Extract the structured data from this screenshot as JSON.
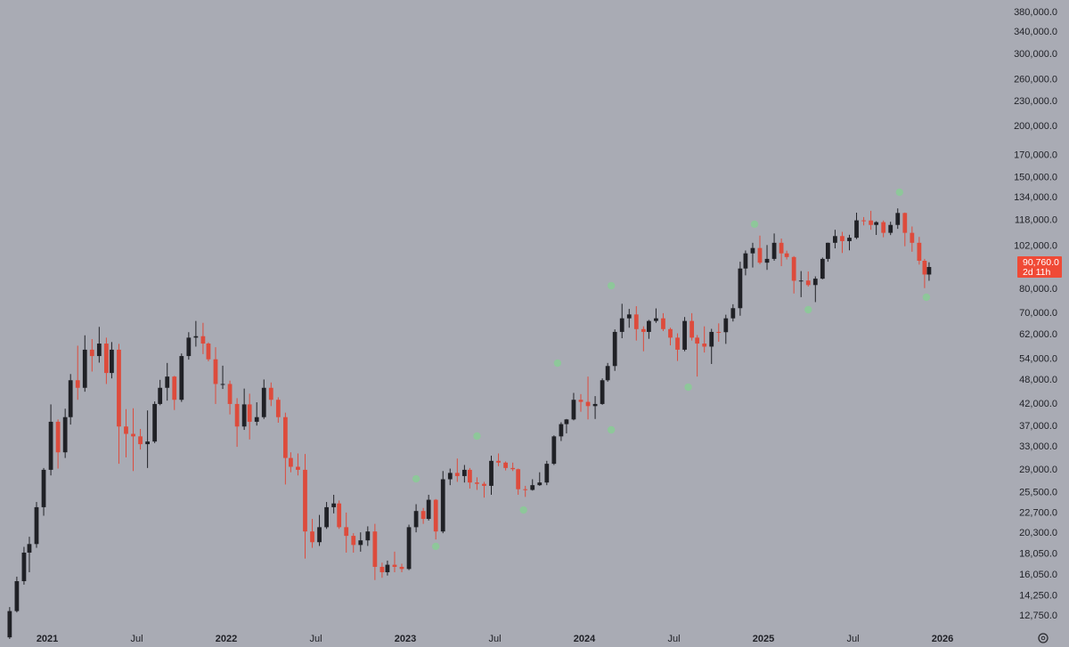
{
  "chart_data": {
    "type": "candlestick",
    "log_scale": true,
    "grid": false,
    "background": "#a9abb4",
    "up_color": "#202126",
    "down_color": "#dd4b3c",
    "x": [
      2020.79,
      2020.83,
      2020.87,
      2020.9,
      2020.94,
      2020.98,
      2021.02,
      2021.06,
      2021.1,
      2021.13,
      2021.17,
      2021.21,
      2021.25,
      2021.29,
      2021.33,
      2021.36,
      2021.4,
      2021.44,
      2021.48,
      2021.52,
      2021.56,
      2021.6,
      2021.63,
      2021.67,
      2021.71,
      2021.75,
      2021.79,
      2021.83,
      2021.87,
      2021.9,
      2021.94,
      2021.98,
      2022.02,
      2022.06,
      2022.1,
      2022.13,
      2022.17,
      2022.21,
      2022.25,
      2022.29,
      2022.33,
      2022.36,
      2022.4,
      2022.44,
      2022.48,
      2022.52,
      2022.56,
      2022.6,
      2022.63,
      2022.67,
      2022.71,
      2022.75,
      2022.79,
      2022.83,
      2022.87,
      2022.9,
      2022.94,
      2022.98,
      2023.02,
      2023.06,
      2023.1,
      2023.13,
      2023.17,
      2023.21,
      2023.25,
      2023.29,
      2023.33,
      2023.36,
      2023.4,
      2023.44,
      2023.48,
      2023.52,
      2023.56,
      2023.6,
      2023.63,
      2023.67,
      2023.71,
      2023.75,
      2023.79,
      2023.83,
      2023.87,
      2023.9,
      2023.94,
      2023.98,
      2024.02,
      2024.06,
      2024.1,
      2024.13,
      2024.17,
      2024.21,
      2024.25,
      2024.29,
      2024.33,
      2024.36,
      2024.4,
      2024.44,
      2024.48,
      2024.52,
      2024.56,
      2024.6,
      2024.63,
      2024.67,
      2024.71,
      2024.75,
      2024.79,
      2024.83,
      2024.87,
      2024.9,
      2024.94,
      2024.98,
      2025.02,
      2025.06,
      2025.1,
      2025.13,
      2025.17,
      2025.21,
      2025.25,
      2025.29,
      2025.33,
      2025.36,
      2025.4,
      2025.44,
      2025.48,
      2025.52,
      2025.56,
      2025.6,
      2025.63,
      2025.67,
      2025.71,
      2025.75,
      2025.79,
      2025.83,
      2025.87,
      2025.9,
      2025.925
    ],
    "open": [
      11300,
      13100,
      15500,
      18200,
      19100,
      23500,
      29000,
      38000,
      32000,
      39000,
      48000,
      46000,
      57000,
      55000,
      59000,
      50000,
      57000,
      37000,
      35500,
      35000,
      33500,
      34000,
      42000,
      46000,
      49000,
      43000,
      55000,
      61000,
      61500,
      59000,
      54000,
      47000,
      47000,
      42000,
      37000,
      41900,
      38000,
      39000,
      46000,
      43000,
      39000,
      31000,
      29500,
      29000,
      20500,
      19300,
      21000,
      23500,
      24000,
      21000,
      20000,
      19000,
      19500,
      20500,
      16800,
      16300,
      17000,
      16800,
      16600,
      21000,
      23000,
      22000,
      24500,
      20500,
      27500,
      28500,
      28000,
      29000,
      27000,
      26800,
      26500,
      30500,
      30200,
      29300,
      29100,
      26000,
      25900,
      26600,
      27000,
      30000,
      35000,
      37500,
      38500,
      43000,
      42500,
      41500,
      42000,
      48000,
      52000,
      63000,
      68000,
      69500,
      64000,
      63000,
      67000,
      68000,
      64000,
      61000,
      57000,
      67000,
      61000,
      59000,
      58000,
      63000,
      62900,
      68000,
      72000,
      90000,
      98000,
      101000,
      93000,
      95000,
      104000,
      98000,
      96000,
      84000,
      84100,
      82000,
      85000,
      95000,
      104000,
      108000,
      105000,
      107000,
      118000,
      117900,
      115000,
      116800,
      110000,
      115000,
      123000,
      110000,
      104000,
      94000,
      87000
    ],
    "high": [
      13400,
      15900,
      18800,
      19900,
      24200,
      29300,
      41900,
      38500,
      40900,
      49700,
      58300,
      61800,
      60500,
      64800,
      61000,
      59500,
      58900,
      40800,
      41000,
      36500,
      40500,
      42600,
      48100,
      52900,
      49200,
      55800,
      62900,
      67000,
      66300,
      59400,
      57800,
      52100,
      47900,
      43400,
      45800,
      44500,
      42400,
      48200,
      47400,
      43600,
      40000,
      32000,
      31800,
      31700,
      22000,
      22500,
      24200,
      25200,
      24400,
      22800,
      20300,
      20400,
      21100,
      21400,
      17200,
      17400,
      18300,
      17100,
      21300,
      23900,
      23400,
      25200,
      24600,
      28800,
      29200,
      30900,
      29800,
      29300,
      27800,
      27100,
      31400,
      31800,
      30400,
      30200,
      29200,
      26500,
      27500,
      28600,
      30500,
      35200,
      37900,
      38600,
      44700,
      44400,
      49000,
      43900,
      48500,
      52900,
      63900,
      73800,
      71700,
      72800,
      65000,
      67400,
      71900,
      70000,
      64500,
      62500,
      68500,
      70000,
      61900,
      65000,
      64100,
      66100,
      69400,
      73600,
      93500,
      99600,
      104000,
      108300,
      102700,
      109600,
      106500,
      99500,
      96500,
      88700,
      88500,
      86100,
      95700,
      104100,
      111900,
      110600,
      108800,
      123200,
      120200,
      124500,
      117400,
      117900,
      117100,
      126200,
      123300,
      114000,
      107500,
      95000,
      93200
    ],
    "low": [
      11200,
      13000,
      15200,
      16300,
      18700,
      22400,
      28100,
      29200,
      31000,
      37400,
      43000,
      45000,
      50400,
      53000,
      47000,
      48500,
      30000,
      31100,
      28800,
      32500,
      29300,
      33700,
      41700,
      42800,
      40600,
      42500,
      53900,
      58000,
      55600,
      53400,
      42000,
      45700,
      39600,
      33000,
      36300,
      34400,
      37200,
      38600,
      41500,
      37800,
      26700,
      28600,
      28100,
      17600,
      18700,
      18900,
      20800,
      22700,
      20800,
      18200,
      18200,
      18300,
      18900,
      15600,
      15800,
      16000,
      16300,
      16300,
      16500,
      20400,
      21400,
      21800,
      19600,
      20300,
      26600,
      27100,
      27000,
      26100,
      25900,
      24800,
      25200,
      29600,
      28900,
      28800,
      25200,
      24900,
      25800,
      26500,
      26600,
      29800,
      34100,
      35600,
      38300,
      40200,
      38500,
      38600,
      41800,
      47600,
      50600,
      60800,
      64500,
      60000,
      56500,
      60600,
      66300,
      63300,
      58400,
      53500,
      56500,
      60000,
      49000,
      56100,
      52600,
      59600,
      58900,
      66800,
      69000,
      86600,
      90500,
      92200,
      89300,
      94000,
      91200,
      94700,
      78200,
      76600,
      81300,
      74500,
      84700,
      93500,
      100800,
      98200,
      99700,
      106200,
      114700,
      111900,
      108700,
      107300,
      108600,
      112500,
      102000,
      98900,
      92000,
      80600,
      84000
    ],
    "close": [
      13100,
      15500,
      18200,
      19100,
      23500,
      29000,
      38000,
      32000,
      39000,
      48000,
      46000,
      57000,
      55000,
      59000,
      50000,
      57000,
      37000,
      35500,
      35000,
      33500,
      34000,
      42000,
      46000,
      49000,
      43000,
      55000,
      61000,
      61500,
      59000,
      54000,
      47000,
      47000,
      42000,
      37000,
      41900,
      38000,
      39000,
      46000,
      43000,
      39000,
      31000,
      29500,
      29000,
      20500,
      19300,
      21000,
      23500,
      24000,
      21000,
      20000,
      19000,
      19500,
      20500,
      16800,
      16300,
      17000,
      16800,
      16600,
      21000,
      23000,
      22000,
      24500,
      20500,
      27500,
      28500,
      28000,
      29000,
      27000,
      26800,
      26500,
      30500,
      30200,
      29300,
      29100,
      26000,
      25900,
      26600,
      27000,
      30000,
      35000,
      37500,
      38500,
      43000,
      42500,
      41500,
      42000,
      48000,
      52000,
      63000,
      68000,
      69500,
      64000,
      63000,
      67000,
      68000,
      64000,
      61000,
      57000,
      67000,
      61000,
      59000,
      58000,
      63000,
      62900,
      68000,
      72000,
      90000,
      98000,
      101000,
      93000,
      95000,
      104000,
      98000,
      96000,
      84000,
      84100,
      82000,
      85000,
      95000,
      104000,
      108000,
      105000,
      107000,
      118000,
      117900,
      115000,
      116800,
      110000,
      115000,
      123000,
      110000,
      104000,
      94000,
      87000,
      90760
    ],
    "markers": {
      "color": "#8ec79a",
      "x": [
        2023.06,
        2023.17,
        2023.4,
        2023.66,
        2023.85,
        2024.15,
        2024.15,
        2024.58,
        2024.95,
        2025.25,
        2025.76,
        2025.91
      ],
      "values": [
        27560,
        18850,
        35060,
        23130,
        52850,
        81700,
        36310,
        46170,
        115450,
        71380,
        138200,
        76560
      ]
    },
    "last_price": {
      "value": 90760,
      "label": "90,760.0"
    },
    "countdown": "2d 11h",
    "xlim": [
      2020.736,
      2026.408
    ],
    "ylim": [
      11830,
      407600
    ],
    "xticks": [
      2021,
      {
        "value": 2021.5,
        "label": "Jul"
      },
      2022,
      {
        "value": 2022.5,
        "label": "Jul"
      },
      2023,
      {
        "value": 2023.5,
        "label": "Jul"
      },
      2024,
      {
        "value": 2024.5,
        "label": "Jul"
      },
      2025,
      {
        "value": 2025.5,
        "label": "Jul"
      },
      2026
    ],
    "yticks": [
      {
        "value": 380000,
        "label": "380,000.0"
      },
      {
        "value": 340000,
        "label": "340,000.0"
      },
      {
        "value": 300000,
        "label": "300,000.0"
      },
      {
        "value": 260000,
        "label": "260,000.0"
      },
      {
        "value": 230000,
        "label": "230,000.0"
      },
      {
        "value": 200000,
        "label": "200,000.0"
      },
      {
        "value": 170000,
        "label": "170,000.0"
      },
      {
        "value": 150000,
        "label": "150,000.0"
      },
      {
        "value": 134000,
        "label": "134,000.0"
      },
      {
        "value": 118000,
        "label": "118,000.0"
      },
      {
        "value": 102000,
        "label": "102,000.0"
      },
      {
        "value": 80000,
        "label": "80,000.0"
      },
      {
        "value": 70000,
        "label": "70,000.0"
      },
      {
        "value": 62000,
        "label": "62,000.0"
      },
      {
        "value": 54000,
        "label": "54,000.0"
      },
      {
        "value": 48000,
        "label": "48,000.0"
      },
      {
        "value": 42000,
        "label": "42,000.0"
      },
      {
        "value": 37000,
        "label": "37,000.0"
      },
      {
        "value": 33000,
        "label": "33,000.0"
      },
      {
        "value": 29000,
        "label": "29,000.0"
      },
      {
        "value": 25500,
        "label": "25,500.0"
      },
      {
        "value": 22700,
        "label": "22,700.0"
      },
      {
        "value": 20300,
        "label": "20,300.0"
      },
      {
        "value": 18050,
        "label": "18,050.0"
      },
      {
        "value": 16050,
        "label": "16,050.0"
      },
      {
        "value": 14250,
        "label": "14,250.0"
      },
      {
        "value": 12750,
        "label": "12,750.0"
      }
    ]
  }
}
